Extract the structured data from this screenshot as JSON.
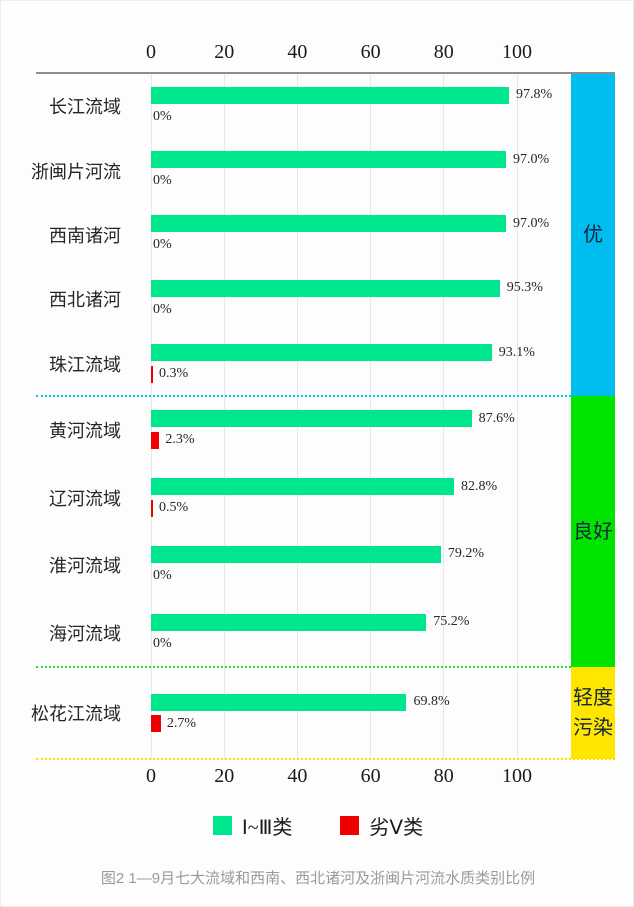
{
  "chart_data": {
    "type": "bar",
    "orientation": "horizontal",
    "x_axis": {
      "ticks": [
        0,
        20,
        40,
        60,
        80,
        100
      ],
      "range": [
        0,
        100
      ],
      "unit": "%"
    },
    "grid": true,
    "series": [
      {
        "name": "Ⅰ~Ⅲ类",
        "color": "#00e68c"
      },
      {
        "name": "劣Ⅴ类",
        "color": "#ee0000"
      }
    ],
    "rows": [
      {
        "label": "长江流域",
        "section": 0,
        "good": 97.8,
        "good_label": "97.8%",
        "bad": 0,
        "bad_label": "0%"
      },
      {
        "label": "浙闽片河流",
        "section": 0,
        "good": 97.0,
        "good_label": "97.0%",
        "bad": 0,
        "bad_label": "0%"
      },
      {
        "label": "西南诸河",
        "section": 0,
        "good": 97.0,
        "good_label": "97.0%",
        "bad": 0,
        "bad_label": "0%"
      },
      {
        "label": "西北诸河",
        "section": 0,
        "good": 95.3,
        "good_label": "95.3%",
        "bad": 0,
        "bad_label": "0%"
      },
      {
        "label": "珠江流域",
        "section": 0,
        "good": 93.1,
        "good_label": "93.1%",
        "bad": 0.3,
        "bad_label": "0.3%"
      },
      {
        "label": "黄河流域",
        "section": 1,
        "good": 87.6,
        "good_label": "87.6%",
        "bad": 2.3,
        "bad_label": "2.3%"
      },
      {
        "label": "辽河流域",
        "section": 1,
        "good": 82.8,
        "good_label": "82.8%",
        "bad": 0.5,
        "bad_label": "0.5%"
      },
      {
        "label": "淮河流域",
        "section": 1,
        "good": 79.2,
        "good_label": "79.2%",
        "bad": 0,
        "bad_label": "0%"
      },
      {
        "label": "海河流域",
        "section": 1,
        "good": 75.2,
        "good_label": "75.2%",
        "bad": 0,
        "bad_label": "0%"
      },
      {
        "label": "松花江流域",
        "section": 2,
        "good": 69.8,
        "good_label": "69.8%",
        "bad": 2.7,
        "bad_label": "2.7%"
      }
    ],
    "sections": [
      {
        "name": "优",
        "lines": [
          "优"
        ],
        "band_color": "#00bdf0",
        "divider_color": "#00c8f0"
      },
      {
        "name": "良好",
        "lines": [
          "良好"
        ],
        "band_color": "#00e400",
        "divider_color": "#2ad82a"
      },
      {
        "name": "轻度污染",
        "lines": [
          "轻度",
          "污染"
        ],
        "band_color": "#ffe600",
        "divider_color": "#ffdf00"
      }
    ],
    "legend": [
      {
        "label": "Ⅰ~Ⅲ类",
        "color": "#00e68c"
      },
      {
        "label": "劣Ⅴ类",
        "color": "#ee0000"
      }
    ],
    "caption": "图2  1—9月七大流域和西南、西北诸河及浙闽片河流水质类别比例"
  }
}
